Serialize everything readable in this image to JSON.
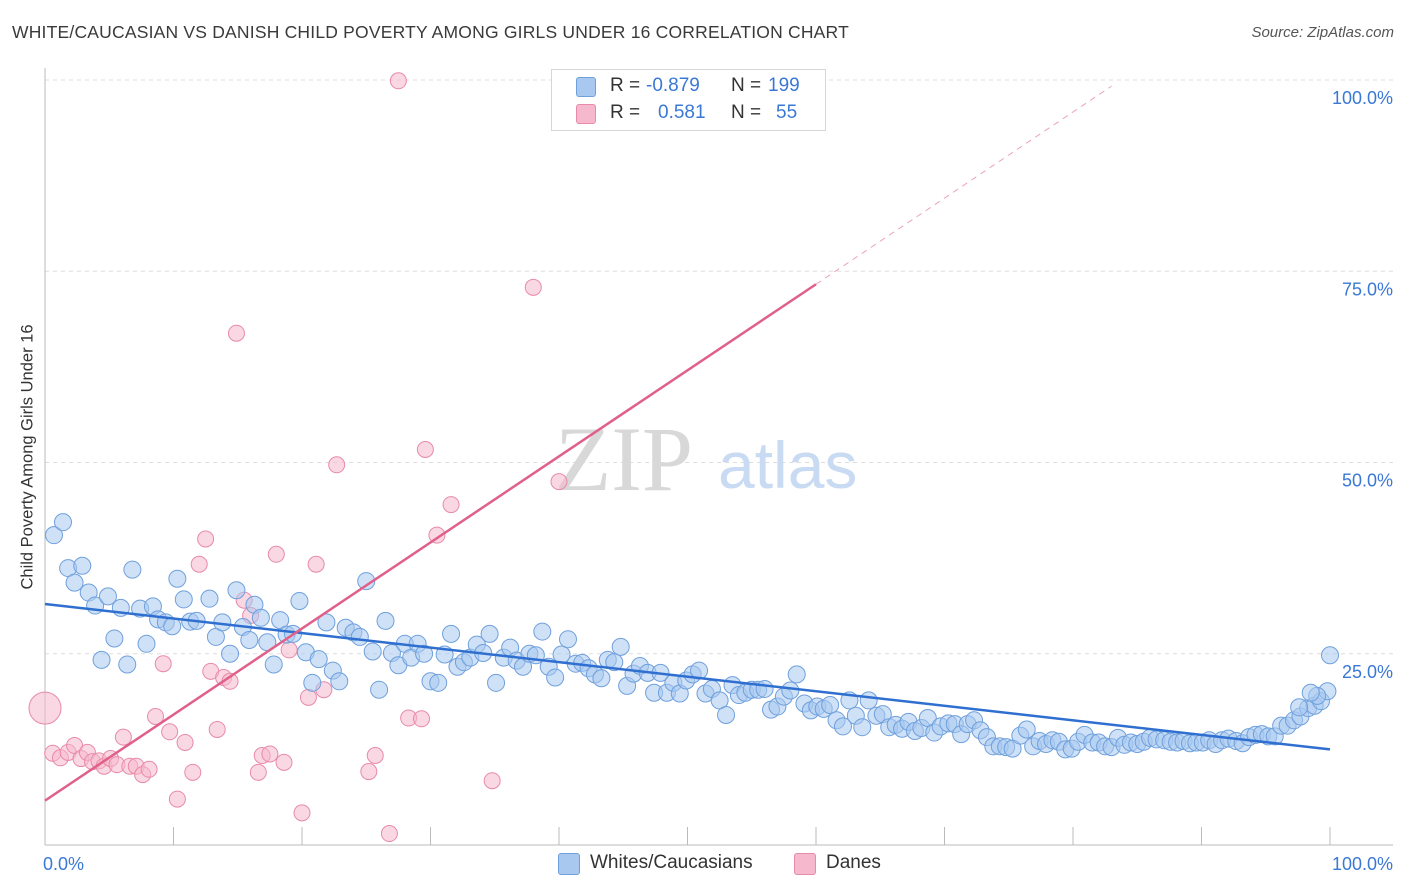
{
  "title": "WHITE/CAUCASIAN VS DANISH CHILD POVERTY AMONG GIRLS UNDER 16 CORRELATION CHART",
  "source": "Source: ZipAtlas.com",
  "watermark": {
    "zip": "ZIP",
    "atlas": "atlas"
  },
  "legend": {
    "rows": [
      {
        "r_label": "R =",
        "r_value": "-0.879",
        "n_label": "N =",
        "n_value": "199",
        "color": "#a8c8f0"
      },
      {
        "r_label": "R =",
        "r_value": "0.581",
        "n_label": "N =",
        "n_value": "55",
        "color": "#f5b8cc"
      }
    ]
  },
  "bottom_legend": [
    {
      "label": "Whites/Caucasians",
      "color": "#a8c8f0"
    },
    {
      "label": "Danes",
      "color": "#f5b8cc"
    }
  ],
  "colors": {
    "blue_fill": "#a8c8f0",
    "blue_stroke": "#6fa0dc",
    "blue_line": "#2f6fd0",
    "pink_fill": "#f5b8cc",
    "pink_stroke": "#e88aa8",
    "pink_line": "#e0608a",
    "tick_label": "#3a78d6",
    "grid": "#dddddd"
  },
  "chart_data": {
    "type": "scatter",
    "title": "WHITE/CAUCASIAN VS DANISH CHILD POVERTY AMONG GIRLS UNDER 16 CORRELATION CHART",
    "xlabel": "",
    "ylabel": "Child Poverty Among Girls Under 16",
    "xlim": [
      0,
      100
    ],
    "ylim": [
      0,
      100
    ],
    "x_tick_labels": [
      "0.0%",
      "100.0%"
    ],
    "y_tick_labels": [
      "25.0%",
      "50.0%",
      "75.0%",
      "100.0%"
    ],
    "y_ticks": [
      25,
      50,
      75,
      100
    ],
    "grid": true,
    "legend_position": "top-center",
    "series": [
      {
        "name": "Whites/Caucasians",
        "r": -0.879,
        "n": 199,
        "trend": {
          "x": [
            0,
            100
          ],
          "y": [
            31.5,
            12.5
          ]
        },
        "points": [
          [
            0.7,
            40.5
          ],
          [
            1.4,
            42.2
          ],
          [
            1.8,
            36.2
          ],
          [
            2.3,
            34.3
          ],
          [
            2.9,
            36.5
          ],
          [
            3.4,
            33
          ],
          [
            3.9,
            31.3
          ],
          [
            4.4,
            24.2
          ],
          [
            4.9,
            32.5
          ],
          [
            5.4,
            27
          ],
          [
            5.9,
            31
          ],
          [
            6.4,
            23.6
          ],
          [
            6.8,
            36
          ],
          [
            7.4,
            30.9
          ],
          [
            7.9,
            26.3
          ],
          [
            8.4,
            31.2
          ],
          [
            8.8,
            29.5
          ],
          [
            9.4,
            29.1
          ],
          [
            9.9,
            28.6
          ],
          [
            10.3,
            34.8
          ],
          [
            10.8,
            32.1
          ],
          [
            11.3,
            29.2
          ],
          [
            11.8,
            29.3
          ],
          [
            12.8,
            32.2
          ],
          [
            13.3,
            27.2
          ],
          [
            13.8,
            29.1
          ],
          [
            14.4,
            25
          ],
          [
            14.9,
            33.3
          ],
          [
            15.4,
            28.5
          ],
          [
            15.9,
            26.8
          ],
          [
            16.3,
            31.4
          ],
          [
            16.8,
            29.7
          ],
          [
            17.3,
            26.5
          ],
          [
            17.8,
            23.6
          ],
          [
            18.3,
            29.4
          ],
          [
            18.8,
            27.5
          ],
          [
            19.3,
            27.6
          ],
          [
            19.8,
            31.9
          ],
          [
            20.3,
            25.2
          ],
          [
            20.8,
            21.2
          ],
          [
            21.3,
            24.3
          ],
          [
            21.9,
            29.1
          ],
          [
            22.4,
            22.8
          ],
          [
            22.9,
            21.4
          ],
          [
            23.4,
            28.4
          ],
          [
            24.0,
            27.8
          ],
          [
            24.5,
            27.2
          ],
          [
            25.0,
            34.5
          ],
          [
            25.5,
            25.3
          ],
          [
            26.0,
            20.3
          ],
          [
            26.5,
            29.3
          ],
          [
            27.0,
            25.1
          ],
          [
            27.5,
            23.5
          ],
          [
            28.0,
            26.3
          ],
          [
            28.5,
            24.5
          ],
          [
            29.0,
            26.3
          ],
          [
            29.5,
            25
          ],
          [
            30.0,
            21.4
          ],
          [
            30.6,
            21.2
          ],
          [
            31.1,
            24.9
          ],
          [
            31.6,
            27.6
          ],
          [
            32.1,
            23.3
          ],
          [
            32.6,
            23.9
          ],
          [
            33.1,
            24.5
          ],
          [
            33.6,
            26.2
          ],
          [
            34.1,
            25.1
          ],
          [
            34.6,
            27.6
          ],
          [
            35.1,
            21.2
          ],
          [
            35.7,
            24.5
          ],
          [
            36.2,
            25.8
          ],
          [
            36.7,
            24.1
          ],
          [
            37.2,
            23.3
          ],
          [
            37.7,
            25
          ],
          [
            38.2,
            24.8
          ],
          [
            38.7,
            27.9
          ],
          [
            39.2,
            23.3
          ],
          [
            39.7,
            21.9
          ],
          [
            40.2,
            24.9
          ],
          [
            40.7,
            26.9
          ],
          [
            41.3,
            23.7
          ],
          [
            41.8,
            23.8
          ],
          [
            42.3,
            23.1
          ],
          [
            42.8,
            22.3
          ],
          [
            43.3,
            21.8
          ],
          [
            43.8,
            24.2
          ],
          [
            44.3,
            23.9
          ],
          [
            44.8,
            25.9
          ],
          [
            45.3,
            20.8
          ],
          [
            45.8,
            22.4
          ],
          [
            46.3,
            23.4
          ],
          [
            46.9,
            22.5
          ],
          [
            47.4,
            19.9
          ],
          [
            47.9,
            22.5
          ],
          [
            48.4,
            19.9
          ],
          [
            48.9,
            21.2
          ],
          [
            49.4,
            19.8
          ],
          [
            49.9,
            21.5
          ],
          [
            50.4,
            22.3
          ],
          [
            50.9,
            22.8
          ],
          [
            51.4,
            19.8
          ],
          [
            51.9,
            20.4
          ],
          [
            52.5,
            18.9
          ],
          [
            53.0,
            17
          ],
          [
            53.5,
            20.9
          ],
          [
            54.0,
            19.6
          ],
          [
            54.5,
            19.9
          ],
          [
            55.0,
            20.3
          ],
          [
            55.5,
            20.3
          ],
          [
            56.0,
            20.4
          ],
          [
            56.5,
            17.7
          ],
          [
            57.0,
            18.1
          ],
          [
            57.5,
            19.4
          ],
          [
            58.0,
            20.2
          ],
          [
            58.5,
            22.3
          ],
          [
            59.1,
            18.5
          ],
          [
            59.6,
            17.6
          ],
          [
            60.1,
            18.1
          ],
          [
            60.6,
            17.8
          ],
          [
            61.1,
            18.3
          ],
          [
            61.6,
            16.3
          ],
          [
            62.1,
            15.5
          ],
          [
            62.6,
            18.9
          ],
          [
            63.1,
            16.9
          ],
          [
            63.6,
            15.4
          ],
          [
            64.1,
            18.9
          ],
          [
            64.7,
            16.9
          ],
          [
            65.2,
            17.1
          ],
          [
            65.7,
            15.4
          ],
          [
            66.2,
            15.7
          ],
          [
            66.7,
            15.2
          ],
          [
            67.2,
            16.1
          ],
          [
            67.7,
            14.9
          ],
          [
            68.2,
            15.3
          ],
          [
            68.7,
            16.6
          ],
          [
            69.2,
            14.7
          ],
          [
            69.7,
            15.5
          ],
          [
            70.3,
            15.9
          ],
          [
            70.8,
            15.8
          ],
          [
            71.3,
            14.5
          ],
          [
            71.8,
            15.8
          ],
          [
            72.3,
            16.3
          ],
          [
            72.8,
            15
          ],
          [
            73.3,
            14.1
          ],
          [
            73.8,
            12.9
          ],
          [
            74.3,
            12.9
          ],
          [
            74.8,
            12.8
          ],
          [
            75.3,
            12.6
          ],
          [
            75.9,
            14.3
          ],
          [
            76.4,
            15.1
          ],
          [
            76.9,
            12.9
          ],
          [
            77.4,
            13.6
          ],
          [
            77.9,
            13.2
          ],
          [
            78.4,
            13.7
          ],
          [
            78.9,
            13.5
          ],
          [
            79.4,
            12.5
          ],
          [
            79.9,
            12.6
          ],
          [
            80.4,
            13.5
          ],
          [
            80.9,
            14.4
          ],
          [
            81.5,
            13.4
          ],
          [
            82.0,
            13.4
          ],
          [
            82.5,
            12.9
          ],
          [
            83.0,
            12.8
          ],
          [
            83.5,
            14
          ],
          [
            84.0,
            13.1
          ],
          [
            84.5,
            13.4
          ],
          [
            85.0,
            13.2
          ],
          [
            85.5,
            13.5
          ],
          [
            86.0,
            14
          ],
          [
            86.5,
            13.8
          ],
          [
            87.1,
            13.7
          ],
          [
            87.6,
            13.5
          ],
          [
            88.1,
            13.4
          ],
          [
            88.6,
            13.6
          ],
          [
            89.1,
            13.3
          ],
          [
            89.6,
            13.4
          ],
          [
            90.1,
            13.4
          ],
          [
            90.6,
            13.7
          ],
          [
            91.1,
            13.2
          ],
          [
            91.6,
            13.7
          ],
          [
            92.1,
            13.9
          ],
          [
            92.7,
            13.6
          ],
          [
            93.2,
            13.3
          ],
          [
            93.7,
            14.1
          ],
          [
            94.2,
            14.4
          ],
          [
            94.7,
            14.5
          ],
          [
            95.2,
            14.2
          ],
          [
            95.7,
            14.2
          ],
          [
            96.2,
            15.6
          ],
          [
            96.7,
            15.6
          ],
          [
            97.2,
            16.3
          ],
          [
            97.7,
            16.8
          ],
          [
            98.3,
            17.9
          ],
          [
            98.8,
            18.2
          ],
          [
            99.3,
            18.8
          ],
          [
            99.8,
            20.1
          ],
          [
            100.0,
            24.8
          ],
          [
            99.0,
            19.5
          ],
          [
            98.5,
            19.9
          ],
          [
            97.6,
            18.0
          ]
        ]
      },
      {
        "name": "Danes",
        "r": 0.581,
        "n": 55,
        "trend": {
          "x": [
            0,
            60
          ],
          "y": [
            5.8,
            73.3
          ]
        },
        "trend_dashed": {
          "x": [
            60,
            83
          ],
          "y": [
            73.3,
            99.2
          ]
        },
        "points": [
          [
            0,
            17.9
          ],
          [
            0.6,
            12
          ],
          [
            1.2,
            11.4
          ],
          [
            1.8,
            12.1
          ],
          [
            2.3,
            13
          ],
          [
            2.8,
            11.3
          ],
          [
            3.3,
            12.1
          ],
          [
            3.7,
            10.9
          ],
          [
            4.2,
            11
          ],
          [
            4.6,
            10.3
          ],
          [
            5.1,
            11.3
          ],
          [
            5.6,
            10.5
          ],
          [
            6.1,
            14.1
          ],
          [
            6.6,
            10.3
          ],
          [
            7.1,
            10.3
          ],
          [
            7.6,
            9.2
          ],
          [
            8.1,
            9.9
          ],
          [
            8.6,
            16.8
          ],
          [
            9.2,
            23.7
          ],
          [
            9.7,
            14.8
          ],
          [
            10.3,
            6
          ],
          [
            10.9,
            13.4
          ],
          [
            11.5,
            9.5
          ],
          [
            12.0,
            36.7
          ],
          [
            12.5,
            40
          ],
          [
            12.9,
            22.7
          ],
          [
            13.4,
            15.1
          ],
          [
            13.9,
            21.9
          ],
          [
            14.4,
            21.4
          ],
          [
            14.9,
            66.9
          ],
          [
            15.5,
            32
          ],
          [
            16.0,
            30
          ],
          [
            16.6,
            9.5
          ],
          [
            16.9,
            11.7
          ],
          [
            17.5,
            11.9
          ],
          [
            18.0,
            38
          ],
          [
            18.6,
            10.8
          ],
          [
            19.0,
            25.5
          ],
          [
            20.0,
            4.2
          ],
          [
            20.5,
            19.3
          ],
          [
            21.1,
            36.7
          ],
          [
            21.7,
            20.3
          ],
          [
            22.7,
            49.7
          ],
          [
            25.2,
            9.6
          ],
          [
            25.7,
            11.7
          ],
          [
            26.8,
            1.5
          ],
          [
            27.5,
            99.9
          ],
          [
            28.3,
            16.6
          ],
          [
            29.3,
            16.5
          ],
          [
            29.6,
            51.7
          ],
          [
            30.5,
            40.5
          ],
          [
            31.6,
            44.5
          ],
          [
            34.8,
            8.4
          ],
          [
            38.0,
            72.9
          ],
          [
            40.0,
            47.5
          ]
        ]
      }
    ]
  }
}
